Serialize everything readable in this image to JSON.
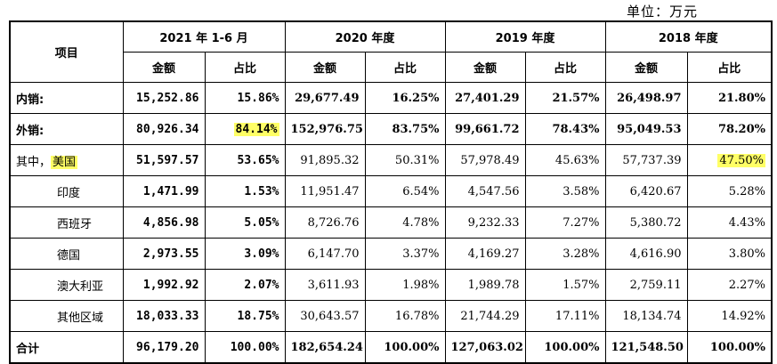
{
  "unit_label": "单位：万元",
  "headers": {
    "item": "项目",
    "periods": [
      "2021 年 1-6 月",
      "2020 年度",
      "2019 年度",
      "2018 年度"
    ],
    "amount": "金额",
    "ratio": "占比"
  },
  "highlight_color": "#ffff66",
  "rows": [
    {
      "label": "内销:",
      "style": "bold",
      "cells": [
        "15,252.86",
        "15.86%",
        "29,677.49",
        "16.25%",
        "27,401.29",
        "21.57%",
        "26,498.97",
        "21.80%"
      ]
    },
    {
      "label": "外销:",
      "style": "bold",
      "cells": [
        "80,926.34",
        "84.14%",
        "152,976.75",
        "83.75%",
        "99,661.72",
        "78.43%",
        "95,049.53",
        "78.20%"
      ]
    },
    {
      "label_prefix": "其中，",
      "label": "美国",
      "style": "normal",
      "cells": [
        "51,597.57",
        "53.65%",
        "91,895.32",
        "50.31%",
        "57,978.49",
        "45.63%",
        "57,737.39",
        "47.50%"
      ]
    },
    {
      "label": "印度",
      "style": "indent",
      "cells": [
        "1,471.99",
        "1.53%",
        "11,951.47",
        "6.54%",
        "4,547.56",
        "3.58%",
        "6,420.67",
        "5.28%"
      ]
    },
    {
      "label": "西班牙",
      "style": "indent",
      "cells": [
        "4,856.98",
        "5.05%",
        "8,726.76",
        "4.78%",
        "9,232.33",
        "7.27%",
        "5,380.72",
        "4.43%"
      ]
    },
    {
      "label": "德国",
      "style": "indent",
      "cells": [
        "2,973.55",
        "3.09%",
        "6,147.70",
        "3.37%",
        "4,169.27",
        "3.28%",
        "4,616.90",
        "3.80%"
      ]
    },
    {
      "label": "澳大利亚",
      "style": "indent",
      "cells": [
        "1,992.92",
        "2.07%",
        "3,611.93",
        "1.98%",
        "1,989.78",
        "1.57%",
        "2,759.11",
        "2.27%"
      ]
    },
    {
      "label": "其他区域",
      "style": "indent",
      "cells": [
        "18,033.33",
        "18.75%",
        "30,643.57",
        "16.78%",
        "21,744.29",
        "17.11%",
        "18,134.74",
        "14.92%"
      ]
    },
    {
      "label": "合计",
      "style": "bold",
      "cells": [
        "96,179.20",
        "100.00%",
        "182,654.24",
        "100.00%",
        "127,063.02",
        "100.00%",
        "121,548.50",
        "100.00%"
      ]
    }
  ]
}
